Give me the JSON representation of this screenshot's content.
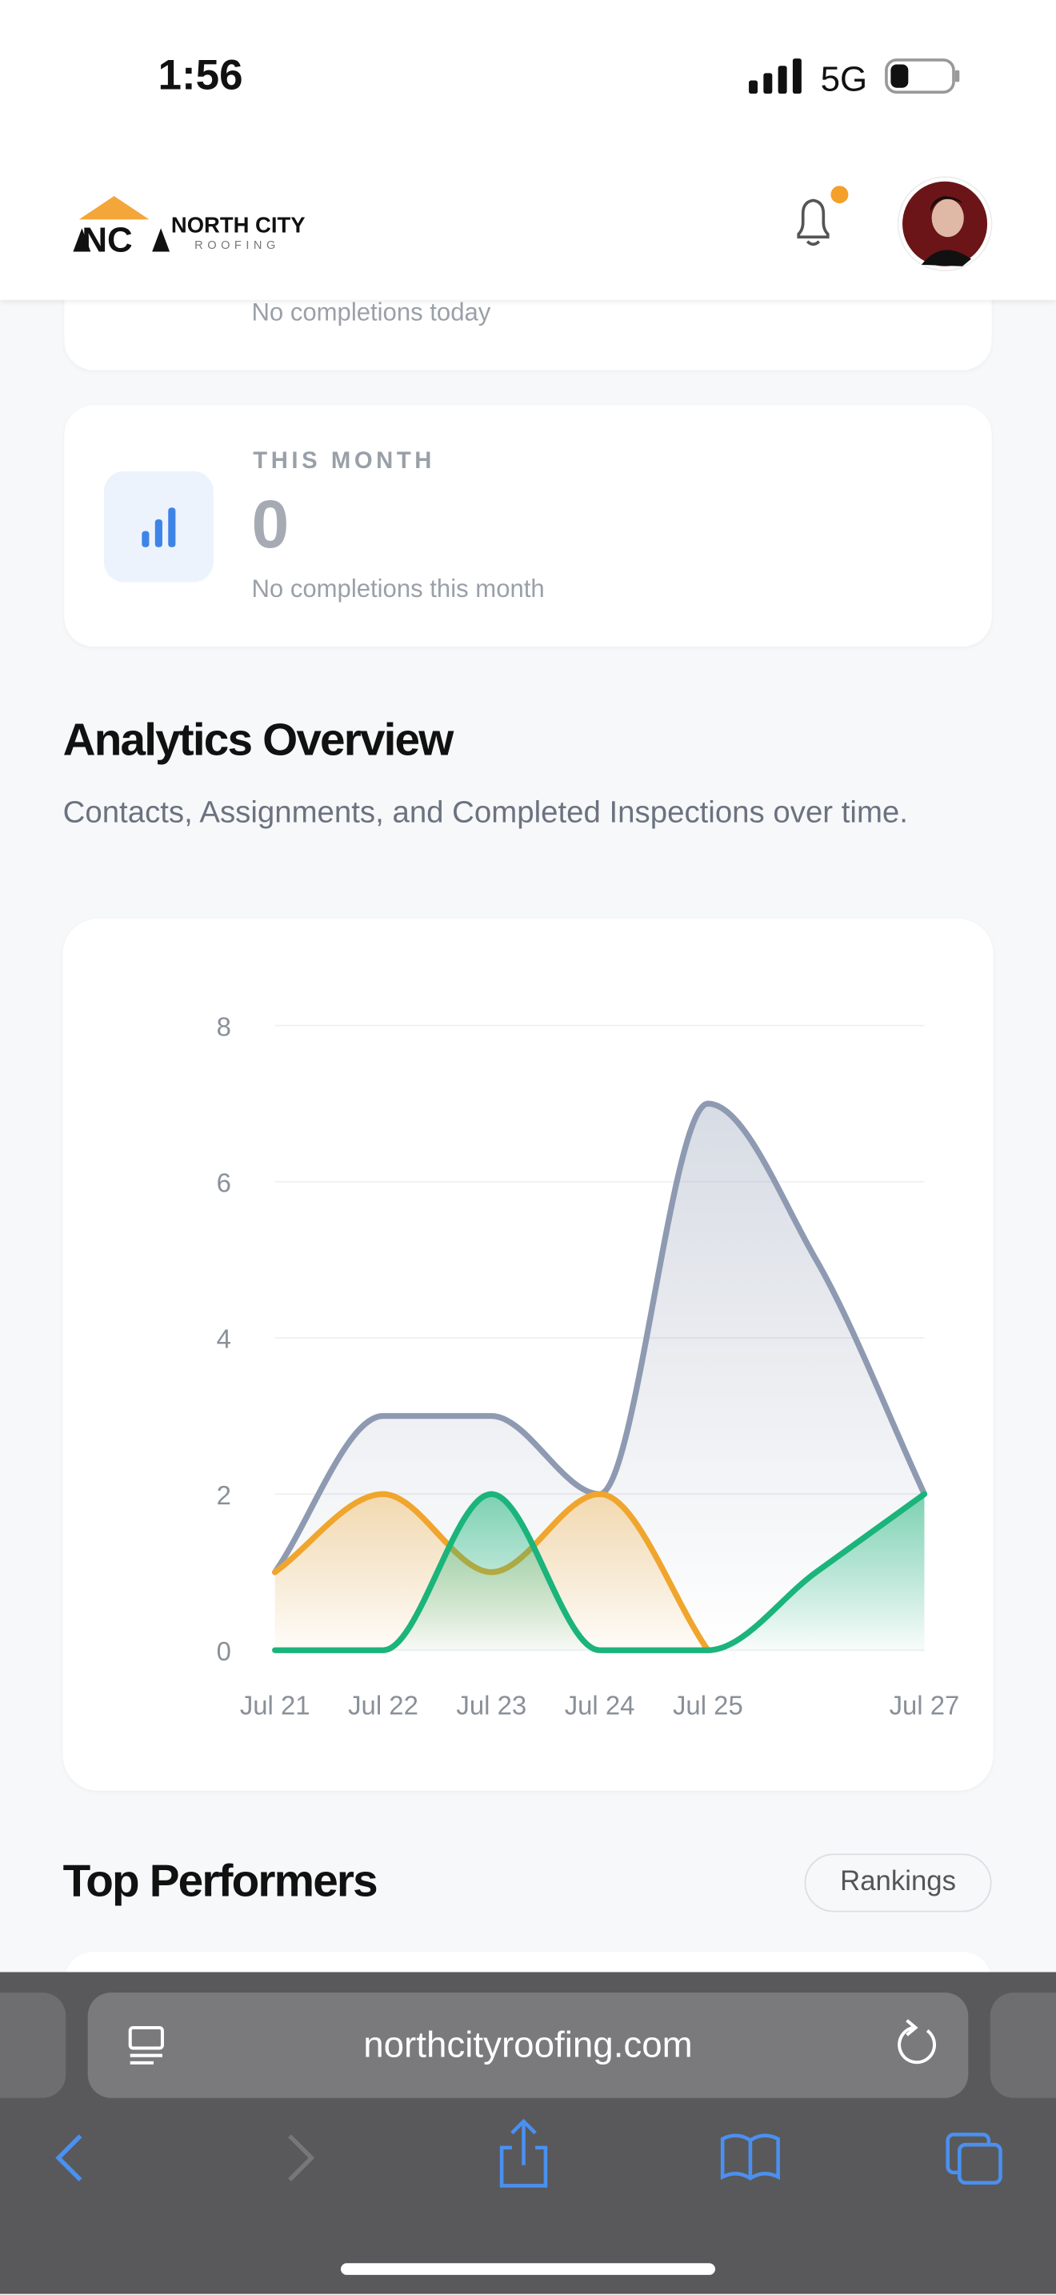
{
  "status_bar": {
    "time": "1:56",
    "network": "5G"
  },
  "header": {
    "logo_name": "NORTH CITY",
    "logo_sub": "ROOFING"
  },
  "stats": [
    {
      "text": "No completions today"
    },
    {
      "label": "THIS MONTH",
      "value": 0,
      "text": "No completions this month"
    }
  ],
  "analytics": {
    "title": "Analytics Overview",
    "subtitle": "Contacts, Assignments, and Completed Inspections over time."
  },
  "chart_data": {
    "type": "area",
    "categories": [
      "Jul 21",
      "Jul 22",
      "Jul 23",
      "Jul 24",
      "Jul 25",
      null,
      "Jul 27"
    ],
    "series": [
      {
        "color": "#8e9ab1",
        "values": [
          1,
          3,
          3,
          2,
          7,
          5,
          2
        ]
      },
      {
        "color": "#f0a52c",
        "values": [
          1,
          2,
          1,
          2,
          0,
          null,
          null
        ]
      },
      {
        "color": "#1bb47b",
        "values": [
          0,
          0,
          2,
          0,
          0,
          1,
          2
        ]
      }
    ],
    "ylim": [
      0,
      8
    ],
    "yticks": [
      0,
      2,
      4,
      6,
      8
    ],
    "grid": true,
    "smooth": true
  },
  "top_performers": {
    "title": "Top Performers",
    "button": "Rankings"
  },
  "browser": {
    "url": "northcityroofing.com"
  }
}
